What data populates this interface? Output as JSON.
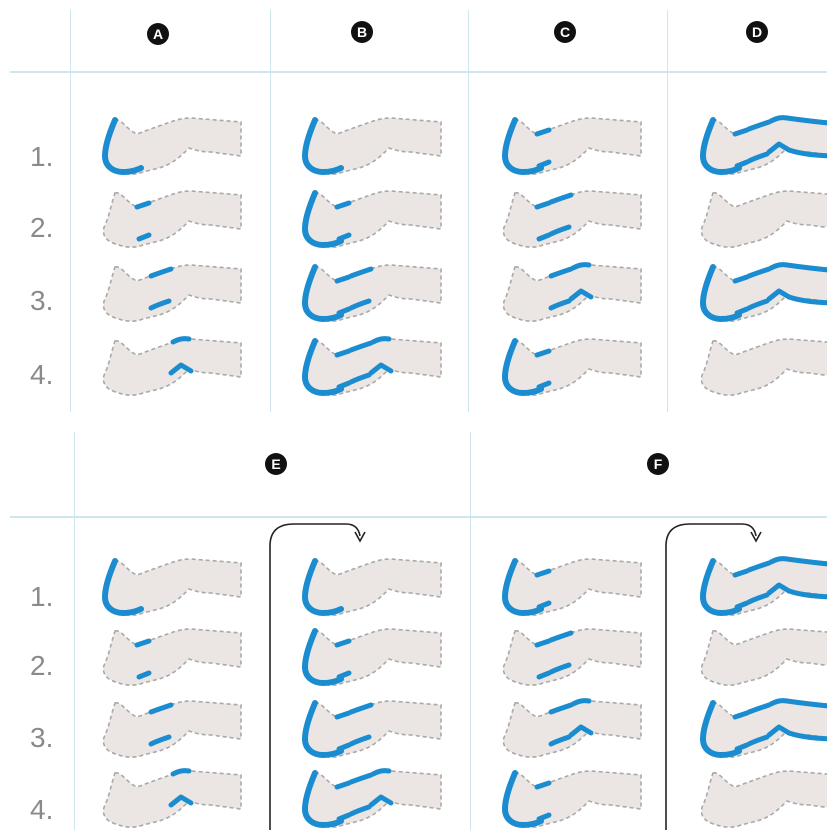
{
  "colors": {
    "compress": "#1a8ccf",
    "leg_fill": "#ebe6e4",
    "leg_outline": "#a9a9a9",
    "grid": "#cfe6ee",
    "row_number": "#8a8a8a",
    "badge_bg": "#111111",
    "badge_text": "#ffffff"
  },
  "top_panel": {
    "columns": [
      {
        "label": "A",
        "rows": [
          [
            "foot"
          ],
          [
            "ankle"
          ],
          [
            "calf"
          ],
          [
            "knee"
          ]
        ]
      },
      {
        "label": "B",
        "rows": [
          [
            "foot"
          ],
          [
            "foot",
            "ankle"
          ],
          [
            "foot",
            "ankle",
            "calf"
          ],
          [
            "foot",
            "ankle",
            "calf",
            "knee"
          ]
        ]
      },
      {
        "label": "C",
        "rows": [
          [
            "foot",
            "ankle"
          ],
          [
            "ankle",
            "calf"
          ],
          [
            "calf",
            "knee"
          ],
          [
            "foot",
            "ankle"
          ]
        ]
      },
      {
        "label": "D",
        "rows": [
          [
            "foot",
            "ankle",
            "calf",
            "knee",
            "thigh"
          ],
          [],
          [
            "foot",
            "ankle",
            "calf",
            "knee",
            "thigh"
          ],
          []
        ]
      }
    ],
    "row_labels": [
      "1.",
      "2.",
      "3.",
      "4."
    ]
  },
  "bottom_panel": {
    "groups": [
      {
        "label": "E",
        "columns": [
          {
            "rows": [
              [
                "foot"
              ],
              [
                "ankle"
              ],
              [
                "calf"
              ],
              [
                "knee"
              ]
            ]
          },
          {
            "rows": [
              [
                "foot"
              ],
              [
                "foot",
                "ankle"
              ],
              [
                "foot",
                "ankle",
                "calf"
              ],
              [
                "foot",
                "ankle",
                "calf",
                "knee"
              ]
            ]
          }
        ]
      },
      {
        "label": "F",
        "columns": [
          {
            "rows": [
              [
                "foot",
                "ankle"
              ],
              [
                "ankle",
                "calf"
              ],
              [
                "calf",
                "knee"
              ],
              [
                "foot",
                "ankle"
              ]
            ]
          },
          {
            "rows": [
              [
                "foot",
                "ankle",
                "calf",
                "knee",
                "thigh"
              ],
              [],
              [
                "foot",
                "ankle",
                "calf",
                "knee",
                "thigh"
              ],
              []
            ]
          }
        ]
      }
    ],
    "row_labels": [
      "1.",
      "2.",
      "3.",
      "4."
    ]
  }
}
